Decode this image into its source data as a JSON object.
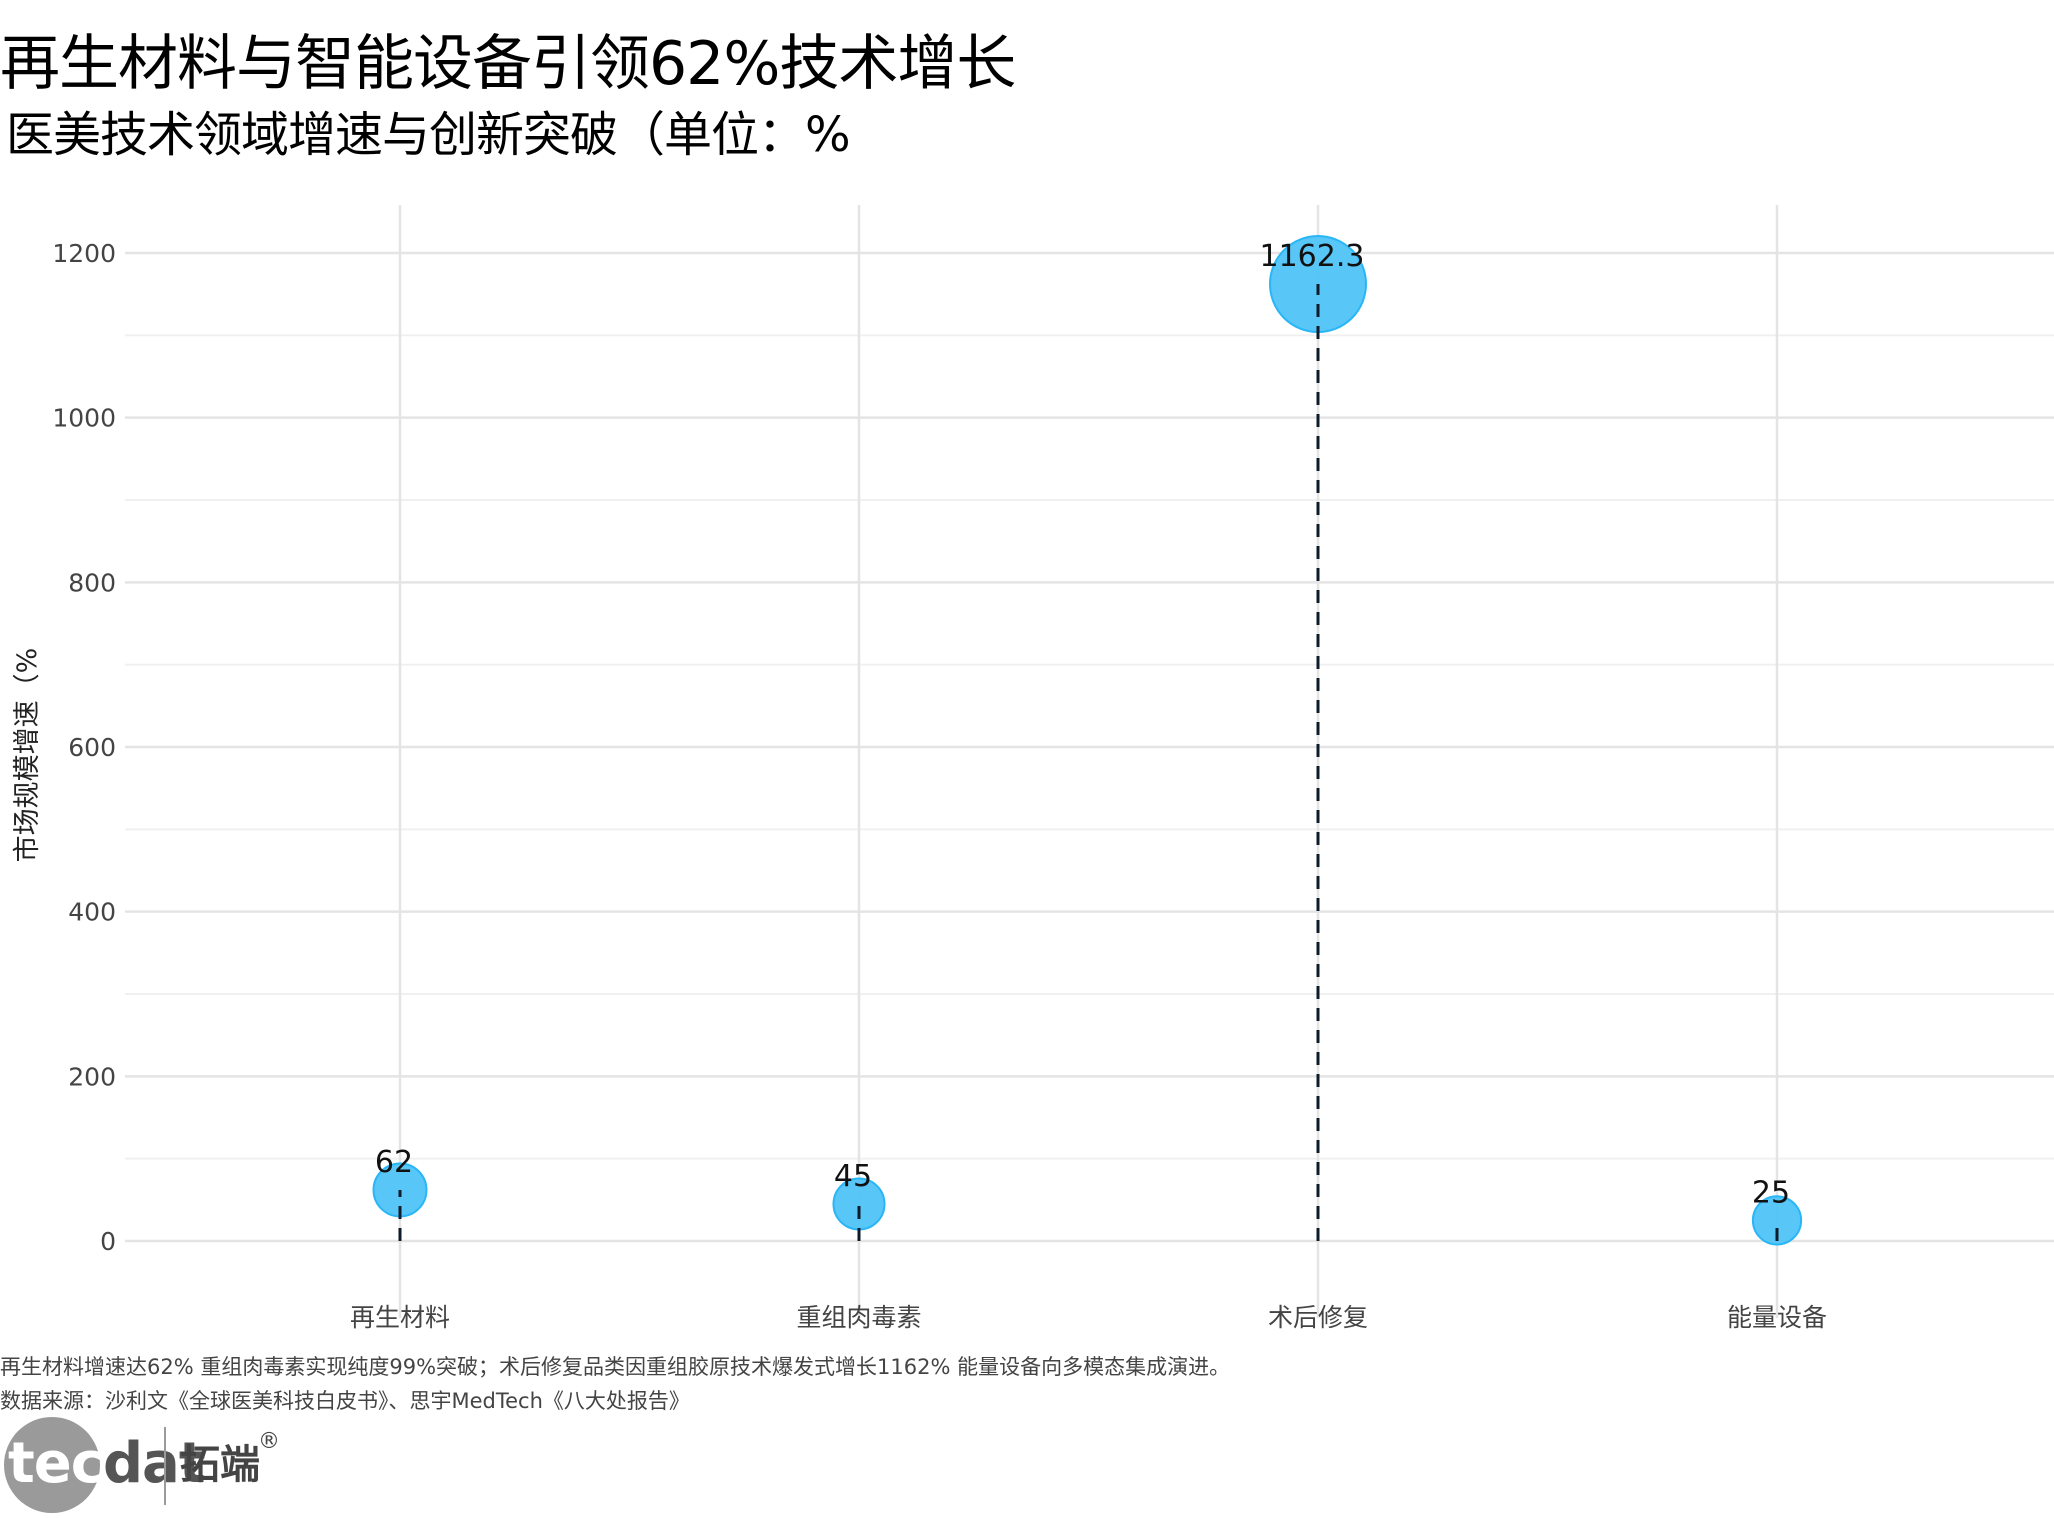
{
  "header": {
    "title": "再生材料与智能设备引领62%技术增长",
    "subtitle": "医美技术领域增速与创新突破（单位：%"
  },
  "chart_data": {
    "type": "scatter",
    "categories": [
      "再生材料",
      "重组肉毒素",
      "术后修复",
      "能量设备"
    ],
    "values": [
      62,
      45,
      1162.3,
      25
    ],
    "value_labels": [
      "62",
      "45",
      "1162.3",
      "25"
    ],
    "ylabel": "市场规模增速（%",
    "ylim": [
      -60,
      1260
    ],
    "yticks": [
      0,
      200,
      400,
      600,
      800,
      1000,
      1200
    ],
    "ytick_labels": [
      "0",
      "200",
      "400",
      "600",
      "800",
      "1000",
      "1200"
    ],
    "grid": true,
    "marker_color": "#4fc3f7",
    "marker_edge": "#29b6f6",
    "stem_color": "#0d1b2a",
    "stem_style": "dashed"
  },
  "footer": {
    "caption": "再生材料增速达62% 重组肉毒素实现纯度99%突破；术后修复品类因重组胶原技术爆发式增长1162% 能量设备向多模态集成演进。",
    "source": "数据来源：沙利文《全球医美科技白皮书》、思宇MedTech《八大处报告》"
  },
  "logo": {
    "part1": "tec",
    "part2": "dat",
    "cn": "拓端",
    "reg": "®"
  }
}
